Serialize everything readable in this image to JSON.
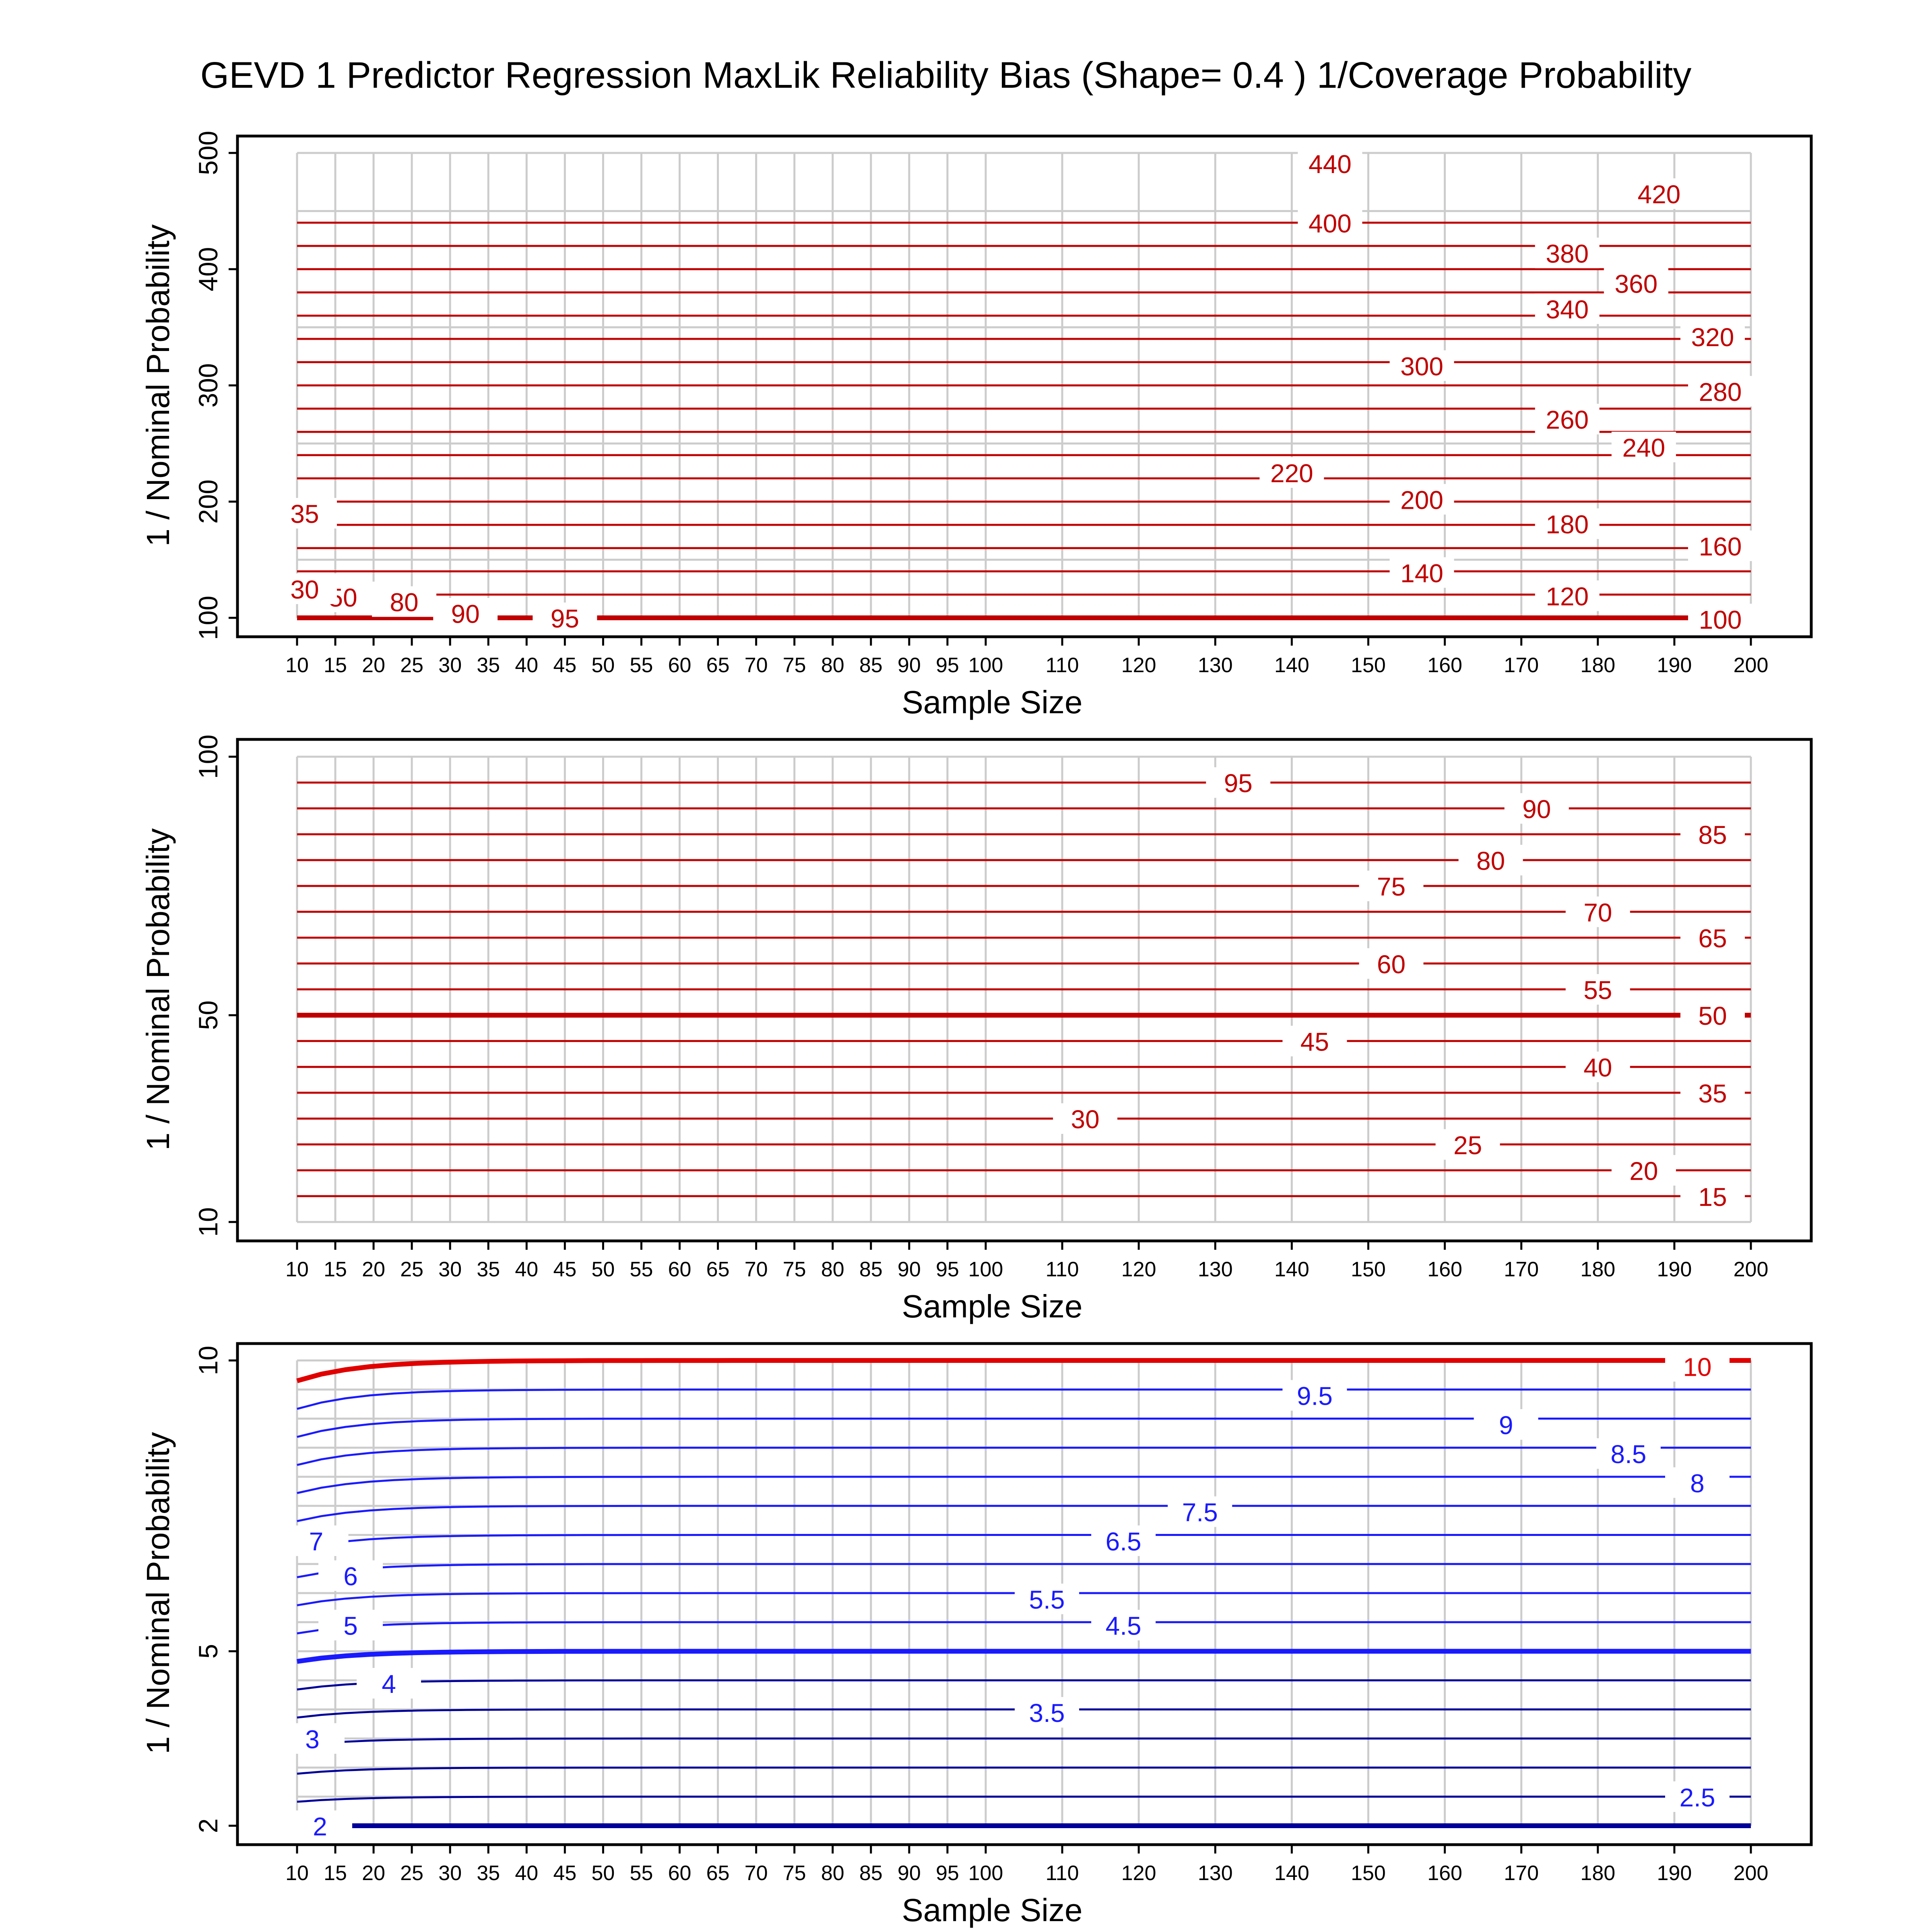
{
  "title": "GEVD 1 Predictor Regression MaxLik Reliability Bias (Shape= 0.4 ) 1/Coverage Probability",
  "colors": {
    "red": "#e00000",
    "dark_red": "#c00000",
    "blue": "#1a1aff",
    "navy": "#000099",
    "grid": "#cccccc",
    "frame": "#000000"
  },
  "chart_data": [
    {
      "type": "line",
      "panel": "top",
      "xlabel": "Sample Size",
      "ylabel": "1 / Nominal Probability",
      "xlim": [
        10,
        200
      ],
      "ylim": [
        100,
        500
      ],
      "x_ticks": [
        10,
        15,
        20,
        25,
        30,
        35,
        40,
        45,
        50,
        55,
        60,
        65,
        70,
        75,
        80,
        85,
        90,
        95,
        100,
        110,
        120,
        130,
        140,
        150,
        160,
        170,
        180,
        190,
        200
      ],
      "y_ticks": [
        100,
        200,
        300,
        400,
        500
      ],
      "y_grid": [
        100,
        150,
        200,
        250,
        300,
        350,
        400,
        450,
        500
      ],
      "grid": true,
      "contour_labels": [
        {
          "text": "440",
          "x": 145,
          "y": 491
        },
        {
          "text": "420",
          "x": 188,
          "y": 465
        },
        {
          "text": "400",
          "x": 145,
          "y": 440
        },
        {
          "text": "380",
          "x": 176,
          "y": 414
        },
        {
          "text": "360",
          "x": 185,
          "y": 388
        },
        {
          "text": "340",
          "x": 176,
          "y": 366
        },
        {
          "text": "320",
          "x": 195,
          "y": 342
        },
        {
          "text": "300",
          "x": 157,
          "y": 317
        },
        {
          "text": "280",
          "x": 196,
          "y": 295
        },
        {
          "text": "260",
          "x": 176,
          "y": 271
        },
        {
          "text": "240",
          "x": 186,
          "y": 247
        },
        {
          "text": "220",
          "x": 140,
          "y": 225
        },
        {
          "text": "200",
          "x": 157,
          "y": 202
        },
        {
          "text": "180",
          "x": 176,
          "y": 181
        },
        {
          "text": "160",
          "x": 196,
          "y": 162
        },
        {
          "text": "140",
          "x": 157,
          "y": 139
        },
        {
          "text": "120",
          "x": 176,
          "y": 119
        },
        {
          "text": "100",
          "x": 196,
          "y": 99
        },
        {
          "text": "95",
          "x": 45,
          "y": 100
        },
        {
          "text": "90",
          "x": 32,
          "y": 104
        },
        {
          "text": "80",
          "x": 24,
          "y": 114
        },
        {
          "text": "50",
          "x": 16,
          "y": 118
        },
        {
          "text": "30",
          "x": 11,
          "y": 125
        },
        {
          "text": "35",
          "x": 11,
          "y": 190
        }
      ]
    },
    {
      "type": "line",
      "panel": "middle",
      "xlabel": "Sample Size",
      "ylabel": "1 / Nominal Probability",
      "xlim": [
        10,
        200
      ],
      "ylim": [
        10,
        100
      ],
      "x_ticks": [
        10,
        15,
        20,
        25,
        30,
        35,
        40,
        45,
        50,
        55,
        60,
        65,
        70,
        75,
        80,
        85,
        90,
        95,
        100,
        110,
        120,
        130,
        140,
        150,
        160,
        170,
        180,
        190,
        200
      ],
      "y_ticks": [
        10,
        50,
        100
      ],
      "y_grid": [
        10,
        20,
        30,
        40,
        50,
        60,
        70,
        80,
        90,
        100
      ],
      "grid": true,
      "contour_labels": [
        {
          "text": "95",
          "x": 133,
          "y": 95
        },
        {
          "text": "90",
          "x": 172,
          "y": 90
        },
        {
          "text": "85",
          "x": 195,
          "y": 85
        },
        {
          "text": "80",
          "x": 166,
          "y": 80
        },
        {
          "text": "75",
          "x": 153,
          "y": 75
        },
        {
          "text": "70",
          "x": 180,
          "y": 70
        },
        {
          "text": "65",
          "x": 195,
          "y": 65
        },
        {
          "text": "60",
          "x": 153,
          "y": 60
        },
        {
          "text": "55",
          "x": 180,
          "y": 55
        },
        {
          "text": "50",
          "x": 195,
          "y": 50
        },
        {
          "text": "45",
          "x": 143,
          "y": 45
        },
        {
          "text": "40",
          "x": 180,
          "y": 40
        },
        {
          "text": "35",
          "x": 195,
          "y": 35
        },
        {
          "text": "30",
          "x": 113,
          "y": 30
        },
        {
          "text": "25",
          "x": 163,
          "y": 25
        },
        {
          "text": "20",
          "x": 186,
          "y": 20
        },
        {
          "text": "15",
          "x": 195,
          "y": 15
        }
      ]
    },
    {
      "type": "line",
      "panel": "bottom",
      "xlabel": "Sample Size",
      "ylabel": "1 / Nominal Probability",
      "xlim": [
        10,
        200
      ],
      "ylim": [
        2,
        10
      ],
      "x_ticks": [
        10,
        15,
        20,
        25,
        30,
        35,
        40,
        45,
        50,
        55,
        60,
        65,
        70,
        75,
        80,
        85,
        90,
        95,
        100,
        110,
        120,
        130,
        140,
        150,
        160,
        170,
        180,
        190,
        200
      ],
      "y_ticks": [
        2,
        5,
        10
      ],
      "y_grid": [
        2,
        2.5,
        3,
        3.5,
        4,
        4.5,
        5,
        5.5,
        6,
        6.5,
        7,
        7.5,
        8,
        8.5,
        9,
        9.5,
        10
      ],
      "grid": true,
      "contour_labels": [
        {
          "text": "10",
          "x": 193,
          "y": 9.9
        },
        {
          "text": "9.5",
          "x": 143,
          "y": 9.4
        },
        {
          "text": "9",
          "x": 168,
          "y": 8.9
        },
        {
          "text": "8.5",
          "x": 184,
          "y": 8.4
        },
        {
          "text": "8",
          "x": 193,
          "y": 7.9
        },
        {
          "text": "7.5",
          "x": 128,
          "y": 7.4
        },
        {
          "text": "7",
          "x": 12.5,
          "y": 6.9
        },
        {
          "text": "6.5",
          "x": 118,
          "y": 6.9
        },
        {
          "text": "6",
          "x": 17,
          "y": 6.3
        },
        {
          "text": "5.5",
          "x": 108,
          "y": 5.9
        },
        {
          "text": "5",
          "x": 17,
          "y": 5.45
        },
        {
          "text": "4.5",
          "x": 118,
          "y": 5.45
        },
        {
          "text": "4",
          "x": 22,
          "y": 4.45
        },
        {
          "text": "3.5",
          "x": 108,
          "y": 3.95
        },
        {
          "text": "3",
          "x": 12,
          "y": 3.5
        },
        {
          "text": "2.5",
          "x": 193,
          "y": 2.5
        },
        {
          "text": "2",
          "x": 13,
          "y": 2.0
        }
      ]
    }
  ]
}
